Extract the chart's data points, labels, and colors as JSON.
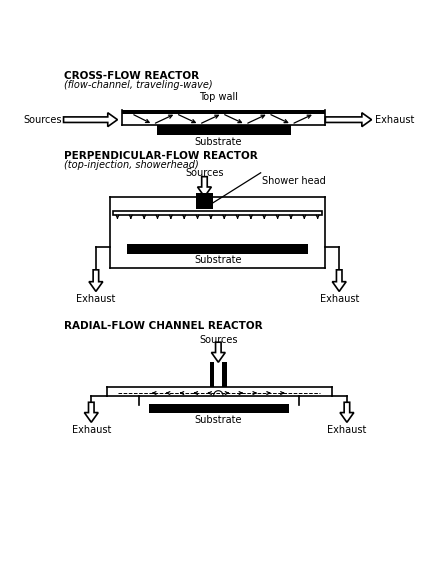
{
  "bg_color": "#ffffff",
  "line_color": "#000000",
  "fig_width": 4.26,
  "fig_height": 5.61,
  "dpi": 100,
  "section1_title": "CROSS-FLOW REACTOR",
  "section1_sub": "(flow-channel, traveling-wave)",
  "section2_title": "PERPENDICULAR-FLOW REACTOR",
  "section2_sub": "(top-injection, showerhead)",
  "section3_title": "RADIAL-FLOW CHANNEL REACTOR",
  "label_sources": "Sources",
  "label_exhaust": "Exhaust",
  "label_substrate": "Substrate",
  "label_topwall": "Top wall",
  "label_showerhead": "Shower head"
}
